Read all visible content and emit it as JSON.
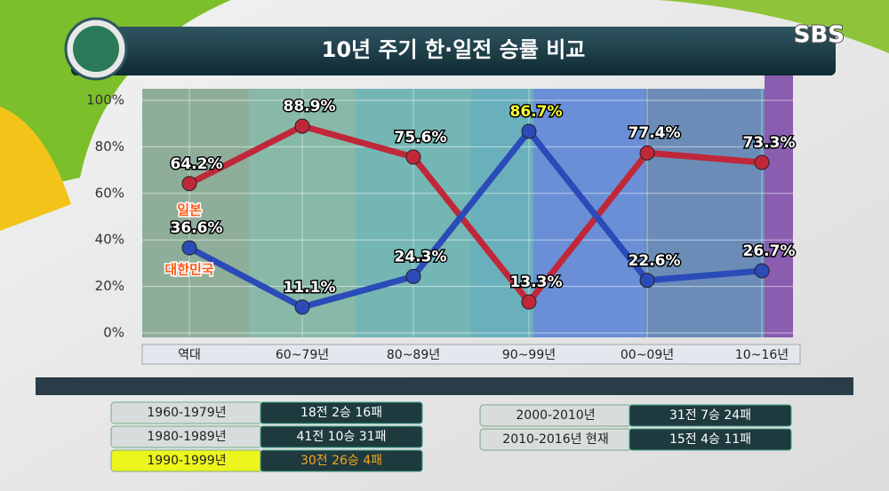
{
  "chart_data": {
    "type": "line",
    "title": "10년 주기 한·일전 승률 비교",
    "logo": "SBS",
    "categories": [
      "역대",
      "60~79년",
      "80~89년",
      "90~99년",
      "00~09년",
      "10~16년"
    ],
    "series": [
      {
        "name": "일본",
        "color": "#c0283a",
        "values": [
          64.2,
          88.9,
          75.6,
          13.3,
          77.4,
          73.3
        ],
        "value_labels": [
          "64.2%",
          "88.9%",
          "75.6%",
          "13.3%",
          "77.4%",
          "73.3%"
        ],
        "value_label_colors": [
          "#ffffff",
          "#ffffff",
          "#ffffff",
          "#ffffff",
          "#ffffff",
          "#ffffff"
        ]
      },
      {
        "name": "대한민국",
        "color": "#2a4bb8",
        "values": [
          36.6,
          11.1,
          24.3,
          86.7,
          22.6,
          26.7
        ],
        "value_labels": [
          "36.6%",
          "11.1%",
          "24.3%",
          "86.7%",
          "22.6%",
          "26.7%"
        ],
        "value_label_colors": [
          "#ffffff",
          "#ffffff",
          "#ffffff",
          "#ffff33",
          "#ffffff",
          "#ffffff"
        ]
      }
    ],
    "ylim": [
      0,
      100
    ],
    "yticks": [
      {
        "value": 0,
        "label": "0%"
      },
      {
        "value": 20,
        "label": "20%"
      },
      {
        "value": 40,
        "label": "40%"
      },
      {
        "value": 60,
        "label": "60%"
      },
      {
        "value": 80,
        "label": "80%"
      },
      {
        "value": 100,
        "label": "100%"
      }
    ],
    "grid": true,
    "records": [
      {
        "period": "1960-1979년",
        "result": "18전 2승 16패",
        "highlight": false
      },
      {
        "period": "1980-1989년",
        "result": "41전 10승 31패",
        "highlight": false
      },
      {
        "period": "1990-1999년",
        "result": "30전 26승 4패",
        "highlight": true
      },
      {
        "period": "2000-2010년",
        "result": "31전 7승 24패",
        "highlight": false
      },
      {
        "period": "2010-2016년 현재",
        "result": "15전 4승 11패",
        "highlight": false
      }
    ]
  }
}
